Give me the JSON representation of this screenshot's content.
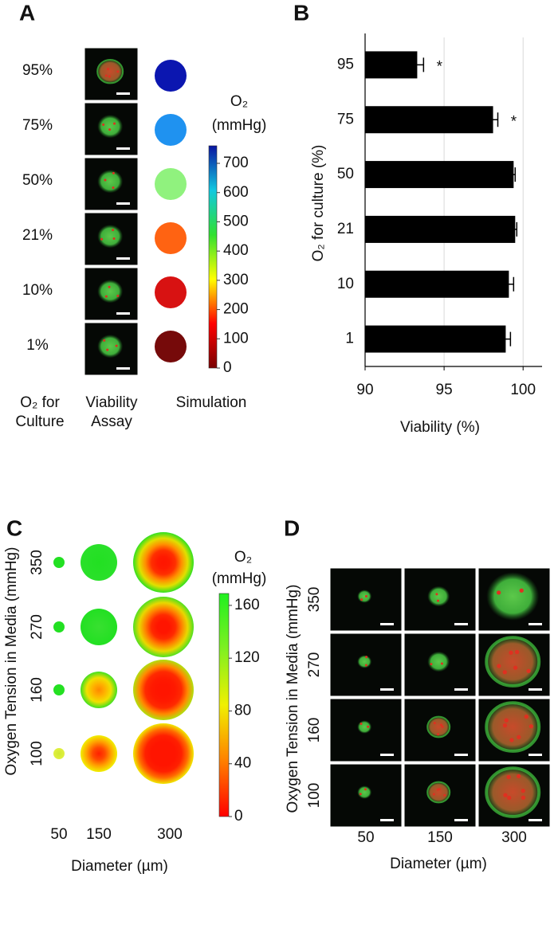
{
  "panel_a": {
    "label": "A",
    "rows": [
      "95%",
      "75%",
      "50%",
      "21%",
      "10%",
      "1%"
    ],
    "simulation_colors": [
      "#0b16b0",
      "#1f92f0",
      "#90f27e",
      "#ff6312",
      "#d81212",
      "#760a0a"
    ],
    "columns": [
      [
        "O₂ for",
        "Culture"
      ],
      [
        "Viability",
        "Assay"
      ],
      [
        "Simulation"
      ]
    ],
    "colorbar": {
      "title": "O₂",
      "unit": "(mmHg)",
      "lim": [
        0,
        760
      ],
      "ticks": [
        0,
        100,
        200,
        300,
        400,
        500,
        600,
        700
      ],
      "colors": [
        "#780000",
        "#ff0000",
        "#ffff00",
        "#30e030",
        "#10c8e0",
        "#0a14a0"
      ]
    }
  },
  "chart_data": {
    "type": "bar",
    "panel_label": "B",
    "orientation": "horizontal",
    "categories": [
      "95",
      "75",
      "50",
      "21",
      "10",
      "1"
    ],
    "values": [
      93.3,
      98.1,
      99.4,
      99.5,
      99.1,
      98.9
    ],
    "errors": [
      0.4,
      0.3,
      0.1,
      0.1,
      0.3,
      0.3
    ],
    "color": "#000000",
    "xlim": [
      90,
      101.2
    ],
    "xticks": [
      90,
      95,
      100
    ],
    "grid": true,
    "xlabel": "Viability (%)",
    "ylabel": "O₂ for culture (%)",
    "annotations": [
      {
        "text": "*",
        "category": "95"
      },
      {
        "text": "*",
        "category": "75"
      }
    ]
  },
  "panel_c": {
    "label": "C",
    "rows": [
      "350",
      "270",
      "160",
      "100"
    ],
    "columns": [
      "50",
      "150",
      "300"
    ],
    "ylabel": "Oxygen Tension in Media (mmHg)",
    "xlabel": "Diameter (µm)",
    "cells": [
      [
        [
          "#22e022",
          "#22e022"
        ],
        [
          "#22e022",
          "#2ae02a"
        ],
        [
          "#ff1500",
          "#ff1a00",
          "#ff3000",
          "#ff9000",
          "#e0e000",
          "#30e020"
        ]
      ],
      [
        [
          "#22e022",
          "#22e022"
        ],
        [
          "#38e030",
          "#22e022"
        ],
        [
          "#ff1500",
          "#ff1500",
          "#ff2a00",
          "#ff8000",
          "#e8d800",
          "#50e020"
        ]
      ],
      [
        [
          "#28e020",
          "#22e022"
        ],
        [
          "#ff8800",
          "#ffb000",
          "#f0e000",
          "#40e020"
        ],
        [
          "#ff1500",
          "#ff1500",
          "#ff1a00",
          "#ff2a00",
          "#ff8a00",
          "#b0e010"
        ]
      ],
      [
        [
          "#d0e830",
          "#e0f040"
        ],
        [
          "#ff2000",
          "#ff4a00",
          "#ffa000",
          "#f0f000"
        ],
        [
          "#ff1500",
          "#ff1500",
          "#ff1500",
          "#ff2000",
          "#ff6a00",
          "#f0e800"
        ]
      ]
    ],
    "colorbar": {
      "title": "O₂",
      "unit": "(mmHg)",
      "lim": [
        0,
        169
      ],
      "ticks": [
        0,
        40,
        80,
        120,
        160
      ],
      "colors": [
        "#ff0000",
        "#ff8000",
        "#f0f000",
        "#80f020",
        "#20f020"
      ]
    }
  },
  "panel_d": {
    "label": "D",
    "rows": [
      "350",
      "270",
      "160",
      "100"
    ],
    "columns": [
      "50",
      "150",
      "300"
    ],
    "ylabel": "Oxygen Tension in Media (mmHg)",
    "xlabel": "Diameter (µm)"
  }
}
